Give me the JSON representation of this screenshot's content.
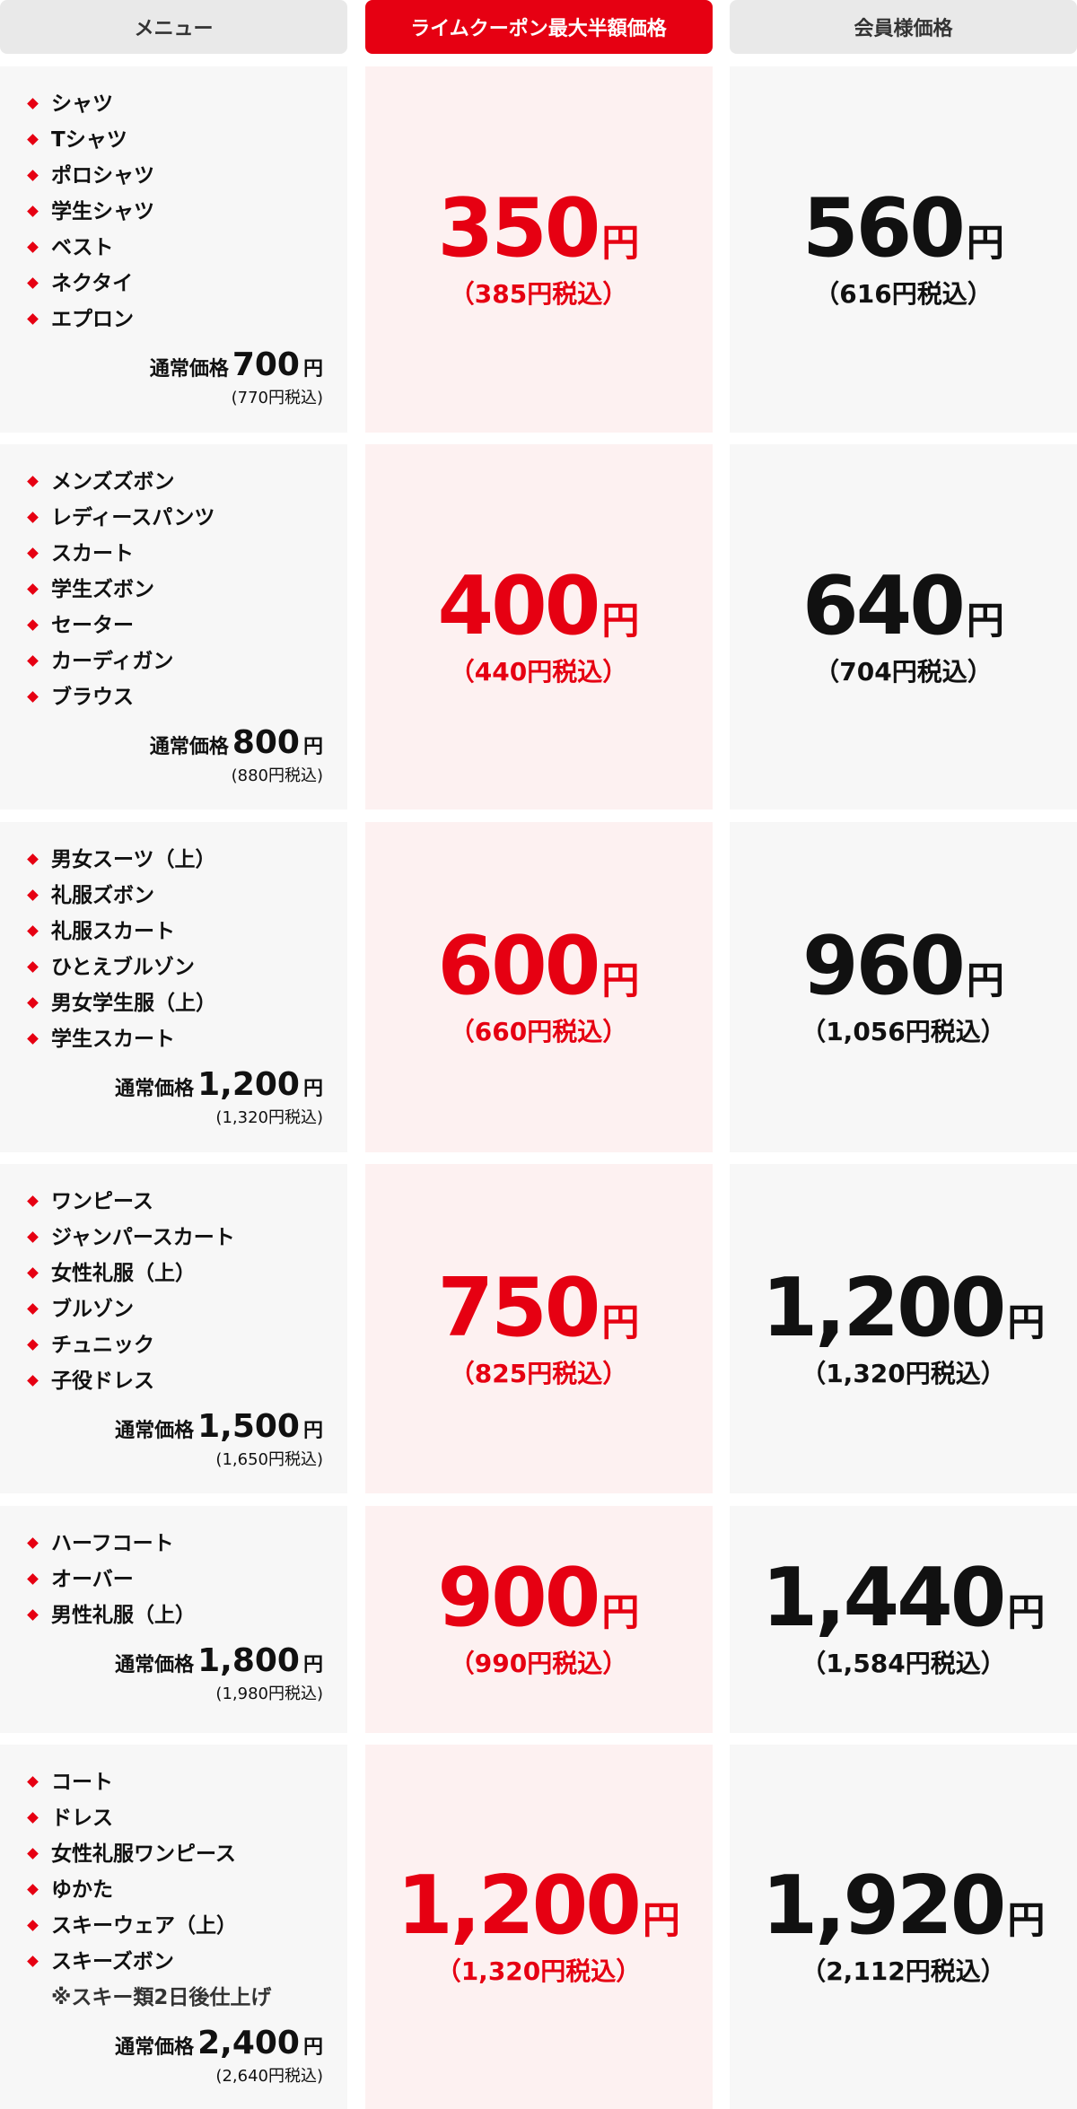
{
  "header": [
    "メニュー",
    "ライムクーポン最大半額価格",
    "会員様価格"
  ],
  "rows": [
    {
      "items": [
        "シャツ",
        "Tシャツ",
        "ポロシャツ",
        "学生シャツ",
        "ベスト",
        "ネクタイ",
        "エプロン"
      ],
      "regular": {
        "label": "通常価格",
        "price": "700",
        "unit": "円",
        "tax": "(770円税込)"
      },
      "coupon": {
        "price": "350",
        "unit": "円",
        "tax": "（385円税込）"
      },
      "member": {
        "price": "560",
        "unit": "円",
        "tax": "（616円税込）"
      }
    },
    {
      "items": [
        "メンズズボン",
        "レディースパンツ",
        "スカート",
        "学生ズボン",
        "セーター",
        "カーディガン",
        "ブラウス"
      ],
      "regular": {
        "label": "通常価格",
        "price": "800",
        "unit": "円",
        "tax": "(880円税込)"
      },
      "coupon": {
        "price": "400",
        "unit": "円",
        "tax": "（440円税込）"
      },
      "member": {
        "price": "640",
        "unit": "円",
        "tax": "（704円税込）"
      }
    },
    {
      "items": [
        "男女スーツ（上）",
        "礼服ズボン",
        "礼服スカート",
        "ひとえブルゾン",
        "男女学生服（上）",
        "学生スカート"
      ],
      "regular": {
        "label": "通常価格",
        "price": "1,200",
        "unit": "円",
        "tax": "(1,320円税込)"
      },
      "coupon": {
        "price": "600",
        "unit": "円",
        "tax": "（660円税込）"
      },
      "member": {
        "price": "960",
        "unit": "円",
        "tax": "（1,056円税込）"
      }
    },
    {
      "items": [
        "ワンピース",
        "ジャンパースカート",
        "女性礼服（上）",
        "ブルゾン",
        "チュニック",
        "子役ドレス"
      ],
      "regular": {
        "label": "通常価格",
        "price": "1,500",
        "unit": "円",
        "tax": "(1,650円税込)"
      },
      "coupon": {
        "price": "750",
        "unit": "円",
        "tax": "（825円税込）"
      },
      "member": {
        "price": "1,200",
        "unit": "円",
        "tax": "（1,320円税込）"
      }
    },
    {
      "items": [
        "ハーフコート",
        "オーバー",
        "男性礼服（上）"
      ],
      "regular": {
        "label": "通常価格",
        "price": "1,800",
        "unit": "円",
        "tax": "(1,980円税込)"
      },
      "coupon": {
        "price": "900",
        "unit": "円",
        "tax": "（990円税込）"
      },
      "member": {
        "price": "1,440",
        "unit": "円",
        "tax": "（1,584円税込）"
      }
    },
    {
      "items": [
        "コート",
        "ドレス",
        "女性礼服ワンピース",
        "ゆかた",
        "スキーウェア（上）",
        "スキーズボン"
      ],
      "note": "※スキー類2日後仕上げ",
      "regular": {
        "label": "通常価格",
        "price": "2,400",
        "unit": "円",
        "tax": "(2,640円税込)"
      },
      "coupon": {
        "price": "1,200",
        "unit": "円",
        "tax": "（1,320円税込）"
      },
      "member": {
        "price": "1,920",
        "unit": "円",
        "tax": "（2,112円税込）"
      }
    }
  ]
}
